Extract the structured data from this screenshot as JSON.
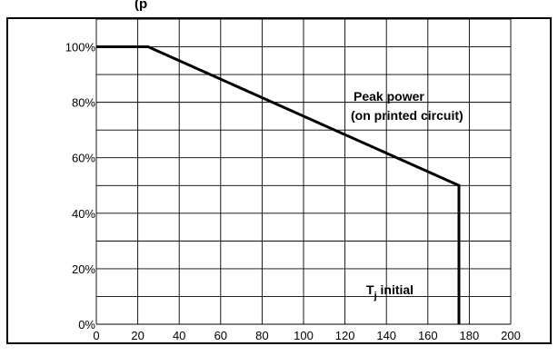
{
  "chart_data": {
    "type": "line",
    "title": "(p",
    "xlabel": "",
    "ylabel": "",
    "xlim": [
      0,
      200
    ],
    "ylim": [
      0,
      110
    ],
    "x_ticks": [
      0,
      20,
      40,
      60,
      80,
      100,
      120,
      140,
      160,
      180,
      200
    ],
    "y_ticks": [
      0,
      20,
      40,
      60,
      80,
      100
    ],
    "y_tick_suffix": "%",
    "grid": true,
    "series": [
      {
        "name": "Peak power (on printed circuit)",
        "points": [
          [
            0,
            100
          ],
          [
            25,
            100
          ],
          [
            175,
            50
          ],
          [
            175,
            0
          ]
        ]
      }
    ],
    "annotations": {
      "peak_power_line1": "Peak power",
      "peak_power_line2": "(on printed circuit)",
      "tj_main": "T",
      "tj_sub": "j",
      "tj_rest": " initial"
    },
    "colors": {
      "line": "#000000",
      "grid": "#000000",
      "background": "#ffffff"
    }
  }
}
